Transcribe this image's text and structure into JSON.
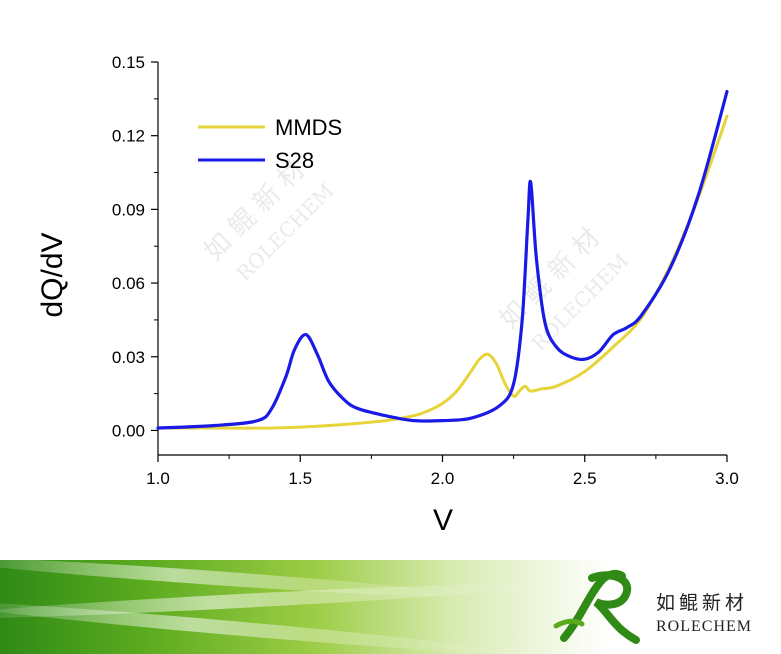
{
  "chart_data": {
    "type": "line",
    "xlabel": "V",
    "ylabel": "dQ/dV",
    "xlim": [
      1.0,
      3.0
    ],
    "ylim": [
      -0.01,
      0.15
    ],
    "xticks": [
      "1.0",
      "1.5",
      "2.0",
      "2.5",
      "3.0"
    ],
    "yticks": [
      "0.00",
      "0.03",
      "0.06",
      "0.09",
      "0.12",
      "0.15"
    ],
    "grid": false,
    "legend_position": "top-left",
    "series": [
      {
        "name": "MMDS",
        "color": "#e6d43a",
        "x": [
          1.0,
          1.2,
          1.4,
          1.6,
          1.8,
          1.9,
          1.95,
          2.0,
          2.05,
          2.1,
          2.13,
          2.16,
          2.19,
          2.22,
          2.25,
          2.27,
          2.29,
          2.31,
          2.35,
          2.4,
          2.5,
          2.6,
          2.7,
          2.8,
          2.9,
          3.0
        ],
        "y": [
          0.001,
          0.001,
          0.001,
          0.002,
          0.004,
          0.006,
          0.008,
          0.011,
          0.016,
          0.024,
          0.029,
          0.031,
          0.027,
          0.019,
          0.014,
          0.016,
          0.018,
          0.016,
          0.017,
          0.018,
          0.024,
          0.034,
          0.046,
          0.067,
          0.095,
          0.128
        ]
      },
      {
        "name": "S28",
        "color": "#1a1ae6",
        "x": [
          1.0,
          1.2,
          1.35,
          1.4,
          1.45,
          1.48,
          1.52,
          1.56,
          1.6,
          1.65,
          1.7,
          1.8,
          1.9,
          2.0,
          2.1,
          2.2,
          2.25,
          2.28,
          2.3,
          2.31,
          2.33,
          2.36,
          2.4,
          2.45,
          2.5,
          2.55,
          2.6,
          2.65,
          2.7,
          2.8,
          2.9,
          3.0
        ],
        "y": [
          0.001,
          0.002,
          0.004,
          0.009,
          0.022,
          0.033,
          0.039,
          0.031,
          0.02,
          0.013,
          0.009,
          0.006,
          0.004,
          0.004,
          0.005,
          0.01,
          0.019,
          0.045,
          0.085,
          0.101,
          0.07,
          0.044,
          0.034,
          0.03,
          0.029,
          0.032,
          0.039,
          0.042,
          0.047,
          0.066,
          0.096,
          0.138
        ]
      }
    ]
  },
  "watermark": {
    "chinese": "如 鲲 新 材",
    "english": "ROLECHEM"
  },
  "brand": {
    "name_cn": "如鲲新材",
    "name_en": "ROLECHEM",
    "colors": {
      "green_dark": "#2f8a16",
      "green_light": "#9ccc45"
    },
    "logo_icon": "rolechem-logo-icon"
  }
}
